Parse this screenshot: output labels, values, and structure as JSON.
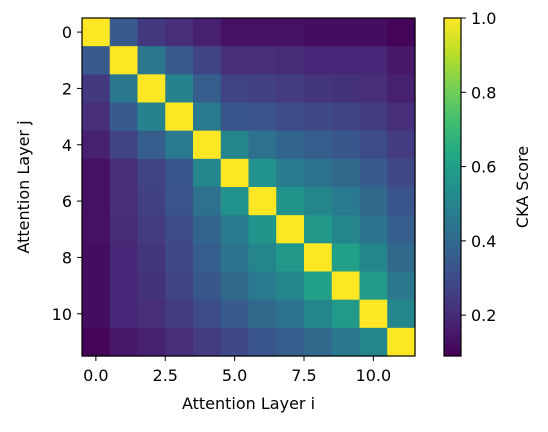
{
  "chart_data": {
    "type": "heatmap",
    "xlabel": "Attention Layer i",
    "ylabel": "Attention Layer j",
    "x_ticks": [
      0,
      2.5,
      5,
      7.5,
      10
    ],
    "x_tick_labels": [
      "0.0",
      "2.5",
      "5.0",
      "7.5",
      "10.0"
    ],
    "y_ticks": [
      0,
      2,
      4,
      6,
      8,
      10
    ],
    "y_tick_labels": [
      "0",
      "2",
      "4",
      "6",
      "8",
      "10"
    ],
    "colorbar": {
      "label": "CKA Score",
      "min": 0.09,
      "max": 1.0,
      "ticks": [
        0.2,
        0.4,
        0.6,
        0.8,
        1.0
      ],
      "tick_labels": [
        "0.2",
        "0.4",
        "0.6",
        "0.8",
        "1.0"
      ],
      "colormap": "viridis"
    },
    "matrix": [
      [
        1.0,
        0.35,
        0.24,
        0.21,
        0.17,
        0.13,
        0.13,
        0.13,
        0.12,
        0.12,
        0.12,
        0.1
      ],
      [
        0.35,
        1.0,
        0.45,
        0.35,
        0.27,
        0.21,
        0.21,
        0.2,
        0.19,
        0.19,
        0.19,
        0.15
      ],
      [
        0.24,
        0.45,
        1.0,
        0.49,
        0.36,
        0.27,
        0.26,
        0.25,
        0.23,
        0.22,
        0.21,
        0.17
      ],
      [
        0.21,
        0.35,
        0.49,
        1.0,
        0.46,
        0.33,
        0.32,
        0.3,
        0.29,
        0.27,
        0.25,
        0.21
      ],
      [
        0.17,
        0.27,
        0.36,
        0.46,
        1.0,
        0.5,
        0.43,
        0.38,
        0.36,
        0.34,
        0.3,
        0.25
      ],
      [
        0.13,
        0.21,
        0.27,
        0.33,
        0.5,
        1.0,
        0.55,
        0.47,
        0.44,
        0.4,
        0.35,
        0.29
      ],
      [
        0.13,
        0.21,
        0.26,
        0.32,
        0.43,
        0.55,
        1.0,
        0.56,
        0.5,
        0.46,
        0.4,
        0.33
      ],
      [
        0.13,
        0.2,
        0.25,
        0.3,
        0.38,
        0.47,
        0.56,
        1.0,
        0.57,
        0.5,
        0.44,
        0.36
      ],
      [
        0.12,
        0.19,
        0.23,
        0.29,
        0.36,
        0.44,
        0.5,
        0.57,
        1.0,
        0.6,
        0.5,
        0.4
      ],
      [
        0.12,
        0.19,
        0.22,
        0.27,
        0.34,
        0.4,
        0.46,
        0.5,
        0.6,
        1.0,
        0.58,
        0.45
      ],
      [
        0.12,
        0.19,
        0.21,
        0.25,
        0.3,
        0.35,
        0.4,
        0.44,
        0.5,
        0.58,
        1.0,
        0.5
      ],
      [
        0.1,
        0.15,
        0.17,
        0.21,
        0.25,
        0.29,
        0.33,
        0.36,
        0.4,
        0.45,
        0.5,
        1.0
      ]
    ]
  }
}
